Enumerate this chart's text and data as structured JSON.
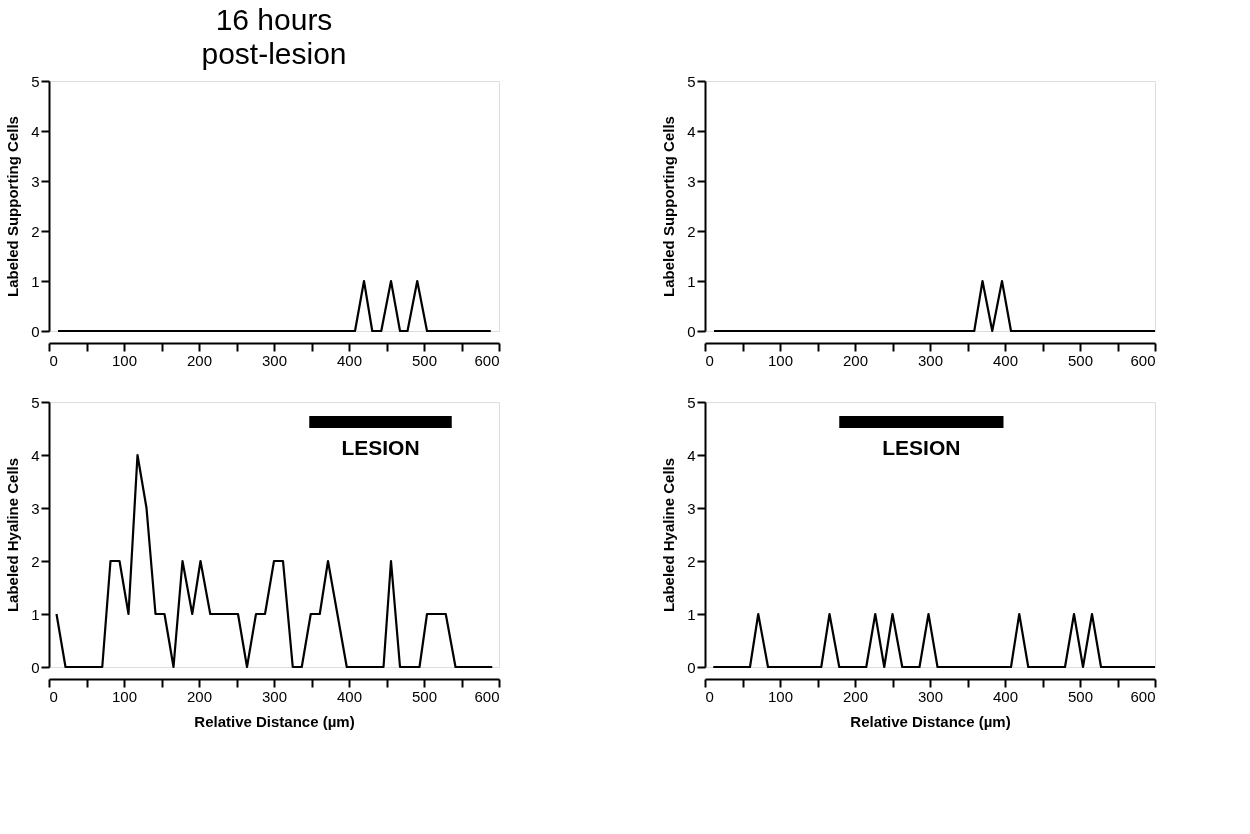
{
  "chart_data": [
    {
      "type": "line",
      "title": "16 hours post-lesion",
      "ylabel": "Labeled Supporting Cells",
      "x": [
        12,
        408,
        420,
        431,
        443,
        456,
        468,
        478,
        491,
        504,
        589
      ],
      "series": [
        {
          "color": "#000000",
          "values": [
            0,
            0,
            1,
            0,
            0,
            1,
            0,
            0,
            1,
            0,
            0
          ]
        }
      ],
      "xlim": [
        0,
        600
      ],
      "ylim": [
        0,
        5
      ],
      "xticks": [
        0,
        {
          "value": 50,
          "label": null
        },
        100,
        {
          "value": 150,
          "label": null
        },
        200,
        {
          "value": 250,
          "label": null
        },
        300,
        {
          "value": 350,
          "label": null
        },
        400,
        {
          "value": 450,
          "label": null
        },
        500,
        {
          "value": 550,
          "label": null
        },
        600
      ],
      "yticks": [
        0,
        1,
        2,
        3,
        4,
        5
      ],
      "grid": false,
      "marker": "none",
      "line_style": "solid"
    },
    {
      "type": "line",
      "ylabel": "Labeled Supporting Cells",
      "x": [
        12,
        359,
        370,
        383,
        396,
        408,
        600
      ],
      "series": [
        {
          "color": "#000000",
          "values": [
            0,
            0,
            1,
            0,
            1,
            0,
            0
          ]
        }
      ],
      "xlim": [
        0,
        600
      ],
      "ylim": [
        0,
        5
      ],
      "xticks": [
        0,
        {
          "value": 50,
          "label": null
        },
        100,
        {
          "value": 150,
          "label": null
        },
        200,
        {
          "value": 250,
          "label": null
        },
        300,
        {
          "value": 350,
          "label": null
        },
        400,
        {
          "value": 450,
          "label": null
        },
        500,
        {
          "value": 550,
          "label": null
        },
        600
      ],
      "yticks": [
        0,
        1,
        2,
        3,
        4,
        5
      ],
      "grid": false,
      "marker": "none",
      "line_style": "solid"
    },
    {
      "type": "line",
      "xlabel": "Relative Distance (µm)",
      "ylabel": "Labeled Hyaline Cells",
      "x": [
        10,
        22,
        71,
        82,
        94,
        106,
        118,
        130,
        142,
        154,
        166,
        178,
        191,
        202,
        215,
        252,
        264,
        276,
        288,
        300,
        312,
        325,
        337,
        349,
        361,
        372,
        397,
        446,
        456,
        468,
        494,
        504,
        529,
        542,
        591
      ],
      "series": [
        {
          "color": "#000000",
          "values": [
            1,
            0,
            0,
            2,
            2,
            1,
            4,
            3,
            1,
            1,
            0,
            2,
            1,
            2,
            1,
            1,
            0,
            1,
            1,
            2,
            2,
            0,
            0,
            1,
            1,
            2,
            0,
            0,
            2,
            0,
            0,
            1,
            1,
            0,
            0
          ]
        }
      ],
      "xlim": [
        0,
        600
      ],
      "ylim": [
        0,
        5
      ],
      "xticks": [
        0,
        {
          "value": 50,
          "label": null
        },
        100,
        {
          "value": 150,
          "label": null
        },
        200,
        {
          "value": 250,
          "label": null
        },
        300,
        {
          "value": 350,
          "label": null
        },
        400,
        {
          "value": 450,
          "label": null
        },
        500,
        {
          "value": 550,
          "label": null
        },
        600
      ],
      "yticks": [
        0,
        1,
        2,
        3,
        4,
        5
      ],
      "grid": false,
      "marker": "none",
      "line_style": "solid",
      "bands": [
        {
          "axis": "x",
          "from": 347,
          "to": 537,
          "label": "LESION",
          "color": "#000000"
        }
      ]
    },
    {
      "type": "line",
      "xlabel": "Relative Distance (µm)",
      "ylabel": "Labeled Hyaline Cells",
      "x": [
        11,
        60,
        71,
        84,
        155,
        166,
        179,
        215,
        227,
        239,
        250,
        263,
        286,
        298,
        310,
        408,
        419,
        431,
        480,
        492,
        504,
        516,
        528,
        600
      ],
      "series": [
        {
          "color": "#000000",
          "values": [
            0,
            0,
            1,
            0,
            0,
            1,
            0,
            0,
            1,
            0,
            1,
            0,
            0,
            1,
            0,
            0,
            1,
            0,
            0,
            1,
            0,
            1,
            0,
            0
          ]
        }
      ],
      "xlim": [
        0,
        600
      ],
      "ylim": [
        0,
        5
      ],
      "xticks": [
        0,
        {
          "value": 50,
          "label": null
        },
        100,
        {
          "value": 150,
          "label": null
        },
        200,
        {
          "value": 250,
          "label": null
        },
        300,
        {
          "value": 350,
          "label": null
        },
        400,
        {
          "value": 450,
          "label": null
        },
        500,
        {
          "value": 550,
          "label": null
        },
        600
      ],
      "yticks": [
        0,
        1,
        2,
        3,
        4,
        5
      ],
      "grid": false,
      "marker": "none",
      "line_style": "solid",
      "bands": [
        {
          "axis": "x",
          "from": 179,
          "to": 398,
          "label": "LESION",
          "color": "#000000"
        }
      ]
    }
  ]
}
